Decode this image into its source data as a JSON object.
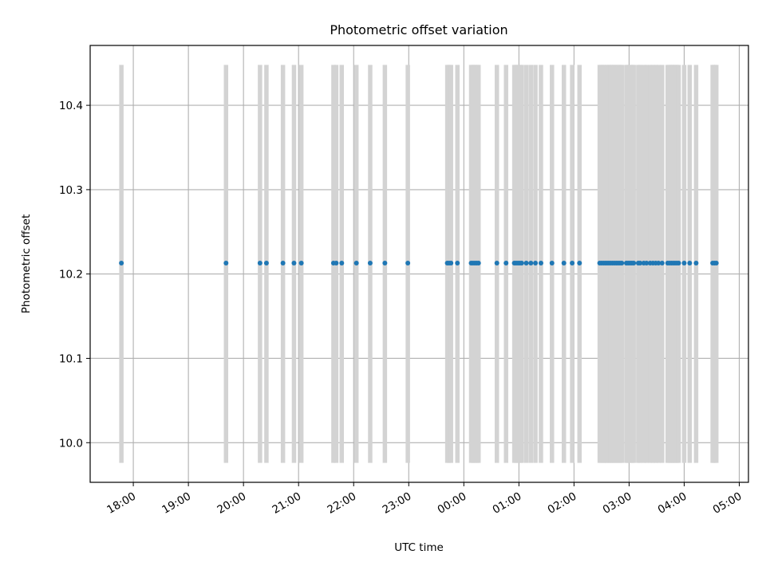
{
  "chart_data": {
    "type": "scatter",
    "title": "Photometric offset variation",
    "xlabel": "UTC time",
    "ylabel": "Photometric offset",
    "x_is_time": true,
    "x_tick_labels": [
      "18:00",
      "19:00",
      "20:00",
      "21:00",
      "22:00",
      "23:00",
      "00:00",
      "01:00",
      "02:00",
      "03:00",
      "04:00",
      "05:00"
    ],
    "y_ticks": [
      10.0,
      10.1,
      10.2,
      10.3,
      10.4
    ],
    "y_tick_labels": [
      "10.0",
      "10.1",
      "10.2",
      "10.3",
      "10.4"
    ],
    "xlim": [
      "17:13",
      "05:10"
    ],
    "ylim": [
      9.953,
      10.471
    ],
    "grid": true,
    "series": [
      {
        "color": "#1f77b4",
        "x": [
          "17:47",
          "19:41",
          "20:18",
          "20:25",
          "20:43",
          "20:55",
          "21:03",
          "21:38",
          "21:41",
          "21:47",
          "22:03",
          "22:18",
          "22:34",
          "22:59",
          "23:42",
          "23:44",
          "23:46",
          "23:53",
          "00:08",
          "00:10",
          "00:12",
          "00:14",
          "00:16",
          "00:36",
          "00:46",
          "00:55",
          "00:57",
          "00:59",
          "01:01",
          "01:03",
          "01:08",
          "01:13",
          "01:18",
          "01:24",
          "01:36",
          "01:49",
          "01:58",
          "02:06",
          "02:28",
          "02:30",
          "02:32",
          "02:34",
          "02:36",
          "02:38",
          "02:40",
          "02:42",
          "02:44",
          "02:46",
          "02:48",
          "02:50",
          "02:52",
          "02:57",
          "02:59",
          "03:01",
          "03:03",
          "03:05",
          "03:10",
          "03:12",
          "03:16",
          "03:19",
          "03:23",
          "03:26",
          "03:29",
          "03:32",
          "03:36",
          "03:42",
          "03:44",
          "03:46",
          "03:48",
          "03:50",
          "03:52",
          "03:54",
          "04:00",
          "04:06",
          "04:13",
          "04:31",
          "04:33",
          "04:35"
        ],
        "y": [
          10.213,
          10.213,
          10.213,
          10.213,
          10.213,
          10.213,
          10.213,
          10.213,
          10.213,
          10.213,
          10.213,
          10.213,
          10.213,
          10.213,
          10.213,
          10.213,
          10.213,
          10.213,
          10.213,
          10.213,
          10.213,
          10.213,
          10.213,
          10.213,
          10.213,
          10.213,
          10.213,
          10.213,
          10.213,
          10.213,
          10.213,
          10.213,
          10.213,
          10.213,
          10.213,
          10.213,
          10.213,
          10.213,
          10.213,
          10.213,
          10.213,
          10.213,
          10.213,
          10.213,
          10.213,
          10.213,
          10.213,
          10.213,
          10.213,
          10.213,
          10.213,
          10.213,
          10.213,
          10.213,
          10.213,
          10.213,
          10.213,
          10.213,
          10.213,
          10.213,
          10.213,
          10.213,
          10.213,
          10.213,
          10.213,
          10.213,
          10.213,
          10.213,
          10.213,
          10.213,
          10.213,
          10.213,
          10.213,
          10.213,
          10.213,
          10.213,
          10.213,
          10.213
        ],
        "error_low": 9.976,
        "error_high": 10.448,
        "error_bar_color": "#d3d3d3"
      }
    ]
  }
}
